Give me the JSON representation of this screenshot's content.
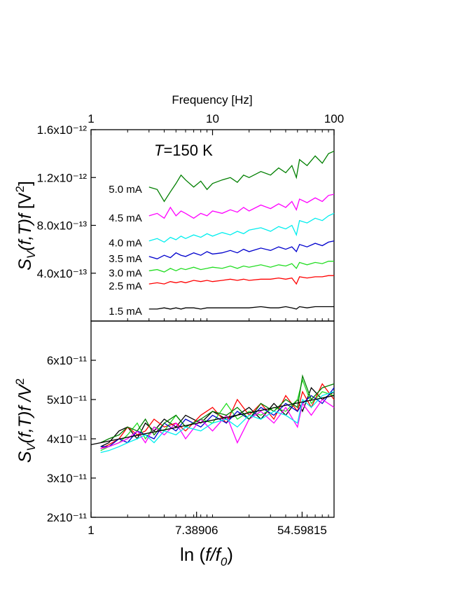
{
  "chart_data": [
    {
      "type": "line",
      "xlog": true,
      "xlim": [
        1,
        100
      ],
      "xticks": [
        1,
        10,
        100
      ],
      "xminorticks": [
        2,
        3,
        4,
        5,
        6,
        7,
        8,
        9,
        20,
        30,
        40,
        50,
        60,
        70,
        80,
        90
      ],
      "xlabel": "Frequency [Hz]",
      "ylabel": [
        "S",
        "V",
        "(f,T)f",
        " [V",
        "2",
        "]"
      ],
      "annotation": [
        "T",
        "=150 K"
      ],
      "ylim": [
        0,
        1.6e-12
      ],
      "yticks": [
        {
          "value": 4e-13,
          "label": "4.0x10⁻¹³"
        },
        {
          "value": 8e-13,
          "label": "8.0x10⁻¹³"
        },
        {
          "value": 1.2e-12,
          "label": "1.2x10⁻¹²"
        },
        {
          "value": 1.6e-12,
          "label": "1.6x10⁻¹²"
        }
      ],
      "x": [
        3,
        3.5,
        4,
        4.5,
        5,
        5.5,
        6,
        7,
        8,
        9,
        10,
        12,
        14,
        16,
        18,
        20,
        25,
        30,
        35,
        40,
        45,
        49,
        52,
        60,
        70,
        80,
        90,
        100
      ],
      "series": [
        {
          "name": "5.0 mA",
          "color": "#007f00",
          "values": [
            1.12e-12,
            1.1e-12,
            1e-12,
            1.08e-12,
            1.15e-12,
            1.22e-12,
            1.18e-12,
            1.12e-12,
            1.17e-12,
            1.1e-12,
            1.15e-12,
            1.18e-12,
            1.2e-12,
            1.16e-12,
            1.22e-12,
            1.2e-12,
            1.25e-12,
            1.22e-12,
            1.28e-12,
            1.24e-12,
            1.3e-12,
            1.2e-12,
            1.35e-12,
            1.3e-12,
            1.38e-12,
            1.32e-12,
            1.4e-12,
            1.42e-12
          ]
        },
        {
          "name": "4.5 mA",
          "color": "#ff00ff",
          "values": [
            8.8e-13,
            9e-13,
            8.6e-13,
            9.5e-13,
            8.8e-13,
            9.2e-13,
            9e-13,
            8.6e-13,
            9e-13,
            8.8e-13,
            9.2e-13,
            9e-13,
            9.3e-13,
            9.1e-13,
            9.5e-13,
            9.2e-13,
            9.7e-13,
            9.4e-13,
            9.8e-13,
            9.5e-13,
            1e-12,
            9.3e-13,
            1.02e-12,
            9.9e-13,
            1.03e-12,
            1e-12,
            1.05e-12,
            1.06e-12
          ]
        },
        {
          "name": "4.0 mA",
          "color": "#00eeee",
          "values": [
            6.7e-13,
            6.9e-13,
            6.6e-13,
            7e-13,
            6.8e-13,
            7.1e-13,
            6.9e-13,
            7.2e-13,
            7e-13,
            7.3e-13,
            7.1e-13,
            7.4e-13,
            7.2e-13,
            7.5e-13,
            7.3e-13,
            7.6e-13,
            7.8e-13,
            7.5e-13,
            7.9e-13,
            7.7e-13,
            8e-13,
            7.2e-13,
            8.4e-13,
            8.2e-13,
            8.6e-13,
            8.4e-13,
            8.8e-13,
            9e-13
          ]
        },
        {
          "name": "3.5 mA",
          "color": "#0000cd",
          "values": [
            5.4e-13,
            5.2e-13,
            5.5e-13,
            5.3e-13,
            5.7e-13,
            5.5e-13,
            5.4e-13,
            5.7e-13,
            5.5e-13,
            5.8e-13,
            5.6e-13,
            5.7e-13,
            5.9e-13,
            5.7e-13,
            6e-13,
            5.8e-13,
            6.1e-13,
            5.9e-13,
            6.2e-13,
            6e-13,
            6.2e-13,
            5.8e-13,
            6.4e-13,
            6.2e-13,
            6.5e-13,
            6.3e-13,
            6.6e-13,
            6.7e-13
          ]
        },
        {
          "name": "3.0 mA",
          "color": "#22dd22",
          "values": [
            4.2e-13,
            4.3e-13,
            4.1e-13,
            4.4e-13,
            4.2e-13,
            4.4e-13,
            4.3e-13,
            4.5e-13,
            4.3e-13,
            4.4e-13,
            4.5e-13,
            4.4e-13,
            4.6e-13,
            4.4e-13,
            4.6e-13,
            4.5e-13,
            4.7e-13,
            4.5e-13,
            4.7e-13,
            4.6e-13,
            4.8e-13,
            4.4e-13,
            4.9e-13,
            4.7e-13,
            4.9e-13,
            4.8e-13,
            5e-13,
            5e-13
          ]
        },
        {
          "name": "2.5 mA",
          "color": "#ff0000",
          "values": [
            3.1e-13,
            3.2e-13,
            3.1e-13,
            3.3e-13,
            3.2e-13,
            3.3e-13,
            3.2e-13,
            3.4e-13,
            3.3e-13,
            3.4e-13,
            3.3e-13,
            3.4e-13,
            3.5e-13,
            3.4e-13,
            3.5e-13,
            3.4e-13,
            3.5e-13,
            3.5e-13,
            3.6e-13,
            3.5e-13,
            3.6e-13,
            3.1e-13,
            3.7e-13,
            3.6e-13,
            3.7e-13,
            3.7e-13,
            3.8e-13,
            3.8e-13
          ]
        },
        {
          "name": "1.5 mA",
          "color": "#000000",
          "values": [
            1e-13,
            1e-13,
            1.1e-13,
            1e-13,
            1.1e-13,
            1e-13,
            1.1e-13,
            1.1e-13,
            1e-13,
            1.1e-13,
            1.1e-13,
            1.1e-13,
            1.1e-13,
            1.1e-13,
            1.1e-13,
            1.1e-13,
            1.2e-13,
            1.1e-13,
            1.1e-13,
            1.2e-13,
            1.1e-13,
            1e-13,
            1.2e-13,
            1.1e-13,
            1.2e-13,
            1.2e-13,
            1.2e-13,
            1.2e-13
          ]
        }
      ]
    },
    {
      "type": "line",
      "xlog": true,
      "xlim": [
        1,
        100
      ],
      "xticks": [
        1,
        7.38906,
        54.59815
      ],
      "xminorticks": [
        2,
        3,
        4,
        5,
        6,
        7,
        8,
        9,
        10,
        20,
        30,
        40,
        50,
        60,
        70,
        80,
        90
      ],
      "xlabel": [
        "ln (",
        "f/f",
        "0",
        ")"
      ],
      "ylabel": [
        "S",
        "V",
        "(f,T)f /V",
        "2"
      ],
      "ylim": [
        2e-11,
        7e-11
      ],
      "yticks": [
        {
          "value": 2e-11,
          "label": "2x10⁻¹¹"
        },
        {
          "value": 3e-11,
          "label": "3x10⁻¹¹"
        },
        {
          "value": 4e-11,
          "label": "4x10⁻¹¹"
        },
        {
          "value": 5e-11,
          "label": "5x10⁻¹¹"
        },
        {
          "value": 6e-11,
          "label": "6x10⁻¹¹"
        }
      ],
      "x": [
        1.2,
        1.4,
        1.7,
        2,
        2.4,
        2.8,
        3.3,
        4,
        5,
        6,
        8,
        10,
        13,
        16,
        20,
        25,
        32,
        40,
        50,
        55,
        65,
        80,
        100
      ],
      "series": [
        {
          "color": "#000000",
          "values": [
            3.8e-11,
            3.9e-11,
            4.2e-11,
            4.3e-11,
            4e-11,
            4.4e-11,
            4.2e-11,
            4.5e-11,
            4.3e-11,
            4.6e-11,
            4.4e-11,
            4.7e-11,
            4.5e-11,
            4.6e-11,
            4.8e-11,
            4.5e-11,
            4.9e-11,
            4.6e-11,
            5e-11,
            4.7e-11,
            5.3e-11,
            5e-11,
            5.2e-11
          ]
        },
        {
          "color": "#ff0000",
          "values": [
            3.75e-11,
            3.85e-11,
            4e-11,
            4.3e-11,
            4.1e-11,
            4.2e-11,
            4.5e-11,
            4.3e-11,
            4.4e-11,
            4.2e-11,
            4.6e-11,
            4.8e-11,
            4.4e-11,
            5e-11,
            4.6e-11,
            4.9e-11,
            4.5e-11,
            5.1e-11,
            4.7e-11,
            5.2e-11,
            4.8e-11,
            5.4e-11,
            5e-11
          ]
        },
        {
          "color": "#22dd22",
          "values": [
            3.7e-11,
            3.8e-11,
            3.9e-11,
            4.1e-11,
            4.4e-11,
            4e-11,
            4.3e-11,
            4.2e-11,
            4.6e-11,
            4.3e-11,
            4.5e-11,
            4.4e-11,
            4.9e-11,
            4.5e-11,
            4.7e-11,
            4.6e-11,
            4.8e-11,
            4.7e-11,
            5e-11,
            5.5e-11,
            4.9e-11,
            5.2e-11,
            5.1e-11
          ]
        },
        {
          "color": "#0000cd",
          "values": [
            3.8e-11,
            3.8e-11,
            4e-11,
            3.9e-11,
            4.2e-11,
            4.1e-11,
            4e-11,
            4.4e-11,
            4.2e-11,
            4.5e-11,
            4.3e-11,
            4.6e-11,
            4.4e-11,
            4.7e-11,
            4.5e-11,
            4.8e-11,
            4.6e-11,
            4.9e-11,
            4.7e-11,
            4.9e-11,
            5.1e-11,
            4.9e-11,
            5.3e-11
          ]
        },
        {
          "color": "#ff00ff",
          "values": [
            3.75e-11,
            3.8e-11,
            3.9e-11,
            4e-11,
            4.2e-11,
            3.9e-11,
            4.3e-11,
            4.1e-11,
            4.4e-11,
            4e-11,
            4.5e-11,
            4.2e-11,
            4.6e-11,
            3.9e-11,
            4.5e-11,
            4.7e-11,
            4.4e-11,
            4.8e-11,
            4.3e-11,
            4.9e-11,
            4.6e-11,
            5e-11,
            4.8e-11
          ]
        },
        {
          "color": "#007f00",
          "values": [
            3.9e-11,
            4e-11,
            4.1e-11,
            4.3e-11,
            4.2e-11,
            4.5e-11,
            4.1e-11,
            4.4e-11,
            4.6e-11,
            4.3e-11,
            4.5e-11,
            4.7e-11,
            4.6e-11,
            4.8e-11,
            4.5e-11,
            4.9e-11,
            4.7e-11,
            5e-11,
            4.8e-11,
            5.6e-11,
            5e-11,
            5.3e-11,
            5.4e-11
          ]
        },
        {
          "color": "#00eeee",
          "values": [
            3.65e-11,
            3.7e-11,
            3.8e-11,
            3.9e-11,
            4e-11,
            4.1e-11,
            3.9e-11,
            4.2e-11,
            4.1e-11,
            4.3e-11,
            4.2e-11,
            4.4e-11,
            4.5e-11,
            4.3e-11,
            4.6e-11,
            4.5e-11,
            4.7e-11,
            4.6e-11,
            4.4e-11,
            5e-11,
            4.8e-11,
            5.1e-11,
            5.2e-11
          ]
        }
      ],
      "fit": {
        "x": [
          1,
          100
        ],
        "values": [
          3.85e-11,
          5.1e-11
        ],
        "color": "#000000"
      }
    }
  ]
}
